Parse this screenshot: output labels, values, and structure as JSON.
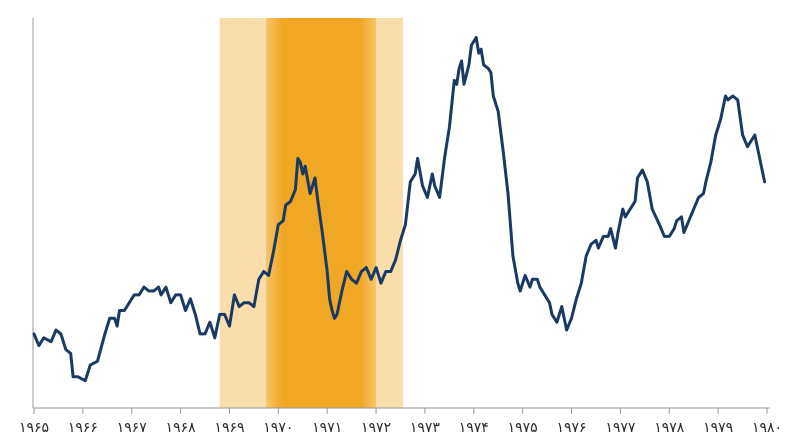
{
  "chart_data": {
    "type": "line",
    "title": "",
    "xlabel": "",
    "ylabel": "",
    "xlim": [
      1965,
      1980
    ],
    "ylim": [
      0,
      100
    ],
    "x_tick_labels": [
      {
        "x": 1965,
        "label": "۱۹۶۵"
      },
      {
        "x": 1966,
        "label": "۱۹۶۶"
      },
      {
        "x": 1967,
        "label": "۱۹۶۷"
      },
      {
        "x": 1968,
        "label": "۱۹۶۸"
      },
      {
        "x": 1969,
        "label": "۱۹۶۹"
      },
      {
        "x": 1970,
        "label": "۱۹۷۰"
      },
      {
        "x": 1971,
        "label": "۱۹۷۱"
      },
      {
        "x": 1972,
        "label": "۱۹۷۲"
      },
      {
        "x": 1973,
        "label": "۱۹۷۳"
      },
      {
        "x": 1974,
        "label": "۱۹۷۴"
      },
      {
        "x": 1975,
        "label": "۱۹۷۵"
      },
      {
        "x": 1976,
        "label": "۱۹۷۶"
      },
      {
        "x": 1977,
        "label": "۱۹۷۷"
      },
      {
        "x": 1978,
        "label": "۱۹۷۸"
      },
      {
        "x": 1979,
        "label": "۱۹۷۹"
      },
      {
        "x": 1980,
        "label": "۱۹۸۰"
      }
    ],
    "grid": false,
    "legend": "none",
    "bands": [
      {
        "from": 1968.8,
        "to": 1972.55,
        "color": "#f9deac"
      },
      {
        "from": 1969.75,
        "to": 1972.0,
        "color": "#f0a723",
        "gradient": true
      }
    ],
    "series": [
      {
        "color": "#1a3a63",
        "points": [
          [
            1965.0,
            19
          ],
          [
            1965.1,
            16
          ],
          [
            1965.2,
            18
          ],
          [
            1965.35,
            17
          ],
          [
            1965.45,
            20
          ],
          [
            1965.55,
            19
          ],
          [
            1965.65,
            15
          ],
          [
            1965.75,
            14
          ],
          [
            1965.8,
            8
          ],
          [
            1965.9,
            8
          ],
          [
            1966.05,
            7
          ],
          [
            1966.15,
            11
          ],
          [
            1966.3,
            12
          ],
          [
            1966.45,
            19
          ],
          [
            1966.55,
            23
          ],
          [
            1966.65,
            23
          ],
          [
            1966.7,
            21
          ],
          [
            1966.75,
            25
          ],
          [
            1966.85,
            25
          ],
          [
            1966.95,
            27
          ],
          [
            1967.05,
            29
          ],
          [
            1967.15,
            29
          ],
          [
            1967.25,
            31
          ],
          [
            1967.35,
            30
          ],
          [
            1967.45,
            30
          ],
          [
            1967.55,
            31
          ],
          [
            1967.6,
            29
          ],
          [
            1967.7,
            31
          ],
          [
            1967.8,
            27
          ],
          [
            1967.9,
            29
          ],
          [
            1968.0,
            29
          ],
          [
            1968.1,
            25
          ],
          [
            1968.2,
            28
          ],
          [
            1968.3,
            24
          ],
          [
            1968.4,
            19
          ],
          [
            1968.5,
            19
          ],
          [
            1968.6,
            22
          ],
          [
            1968.7,
            18
          ],
          [
            1968.8,
            24
          ],
          [
            1968.9,
            24
          ],
          [
            1969.0,
            21
          ],
          [
            1969.1,
            29
          ],
          [
            1969.2,
            26
          ],
          [
            1969.3,
            27
          ],
          [
            1969.4,
            27
          ],
          [
            1969.5,
            26
          ],
          [
            1969.6,
            33
          ],
          [
            1969.7,
            35
          ],
          [
            1969.8,
            34
          ],
          [
            1969.9,
            40
          ],
          [
            1970.0,
            47
          ],
          [
            1970.1,
            48
          ],
          [
            1970.15,
            52
          ],
          [
            1970.25,
            53
          ],
          [
            1970.35,
            56
          ],
          [
            1970.4,
            64
          ],
          [
            1970.45,
            63
          ],
          [
            1970.5,
            60
          ],
          [
            1970.55,
            62
          ],
          [
            1970.65,
            55
          ],
          [
            1970.75,
            59
          ],
          [
            1970.8,
            54
          ],
          [
            1970.9,
            45
          ],
          [
            1971.0,
            35
          ],
          [
            1971.05,
            28
          ],
          [
            1971.1,
            25
          ],
          [
            1971.15,
            23
          ],
          [
            1971.2,
            24
          ],
          [
            1971.3,
            30
          ],
          [
            1971.4,
            35
          ],
          [
            1971.5,
            33
          ],
          [
            1971.6,
            32
          ],
          [
            1971.7,
            35
          ],
          [
            1971.8,
            36
          ],
          [
            1971.9,
            33
          ],
          [
            1972.0,
            36
          ],
          [
            1972.1,
            32
          ],
          [
            1972.2,
            35
          ],
          [
            1972.3,
            35
          ],
          [
            1972.4,
            38
          ],
          [
            1972.5,
            43
          ],
          [
            1972.6,
            47
          ],
          [
            1972.7,
            58
          ],
          [
            1972.8,
            60
          ],
          [
            1972.85,
            64
          ],
          [
            1972.95,
            57
          ],
          [
            1973.05,
            54
          ],
          [
            1973.15,
            60
          ],
          [
            1973.2,
            57
          ],
          [
            1973.3,
            54
          ],
          [
            1973.4,
            64
          ],
          [
            1973.5,
            72
          ],
          [
            1973.6,
            84
          ],
          [
            1973.65,
            83
          ],
          [
            1973.7,
            87
          ],
          [
            1973.75,
            89
          ],
          [
            1973.8,
            83
          ],
          [
            1973.9,
            88
          ],
          [
            1973.95,
            93
          ],
          [
            1974.05,
            95
          ],
          [
            1974.1,
            91
          ],
          [
            1974.15,
            92
          ],
          [
            1974.2,
            88
          ],
          [
            1974.3,
            87
          ],
          [
            1974.35,
            86
          ],
          [
            1974.4,
            80
          ],
          [
            1974.5,
            76
          ],
          [
            1974.6,
            66
          ],
          [
            1974.7,
            55
          ],
          [
            1974.8,
            39
          ],
          [
            1974.9,
            32
          ],
          [
            1974.95,
            30
          ],
          [
            1975.05,
            34
          ],
          [
            1975.15,
            31
          ],
          [
            1975.2,
            33
          ],
          [
            1975.3,
            33
          ],
          [
            1975.35,
            31
          ],
          [
            1975.45,
            29
          ],
          [
            1975.55,
            27
          ],
          [
            1975.6,
            24
          ],
          [
            1975.7,
            22
          ],
          [
            1975.8,
            26
          ],
          [
            1975.85,
            23
          ],
          [
            1975.9,
            20
          ],
          [
            1976.0,
            23
          ],
          [
            1976.1,
            28
          ],
          [
            1976.2,
            32
          ],
          [
            1976.3,
            39
          ],
          [
            1976.4,
            42
          ],
          [
            1976.5,
            43
          ],
          [
            1976.55,
            41
          ],
          [
            1976.65,
            44
          ],
          [
            1976.75,
            44
          ],
          [
            1976.8,
            46
          ],
          [
            1976.9,
            41
          ],
          [
            1976.95,
            45
          ],
          [
            1977.05,
            51
          ],
          [
            1977.1,
            49
          ],
          [
            1977.2,
            51
          ],
          [
            1977.3,
            53
          ],
          [
            1977.35,
            59
          ],
          [
            1977.45,
            61
          ],
          [
            1977.55,
            58
          ],
          [
            1977.65,
            51
          ],
          [
            1977.8,
            47
          ],
          [
            1977.9,
            44
          ],
          [
            1978.0,
            44
          ],
          [
            1978.1,
            46
          ],
          [
            1978.15,
            48
          ],
          [
            1978.25,
            49
          ],
          [
            1978.3,
            45
          ],
          [
            1978.4,
            48
          ],
          [
            1978.5,
            51
          ],
          [
            1978.6,
            54
          ],
          [
            1978.7,
            55
          ],
          [
            1978.75,
            58
          ],
          [
            1978.85,
            63
          ],
          [
            1978.95,
            70
          ],
          [
            1979.05,
            74
          ],
          [
            1979.15,
            80
          ],
          [
            1979.2,
            79
          ],
          [
            1979.3,
            80
          ],
          [
            1979.4,
            79
          ],
          [
            1979.5,
            70
          ],
          [
            1979.6,
            67
          ],
          [
            1979.75,
            70
          ],
          [
            1979.85,
            64
          ],
          [
            1979.95,
            58
          ]
        ]
      }
    ]
  }
}
